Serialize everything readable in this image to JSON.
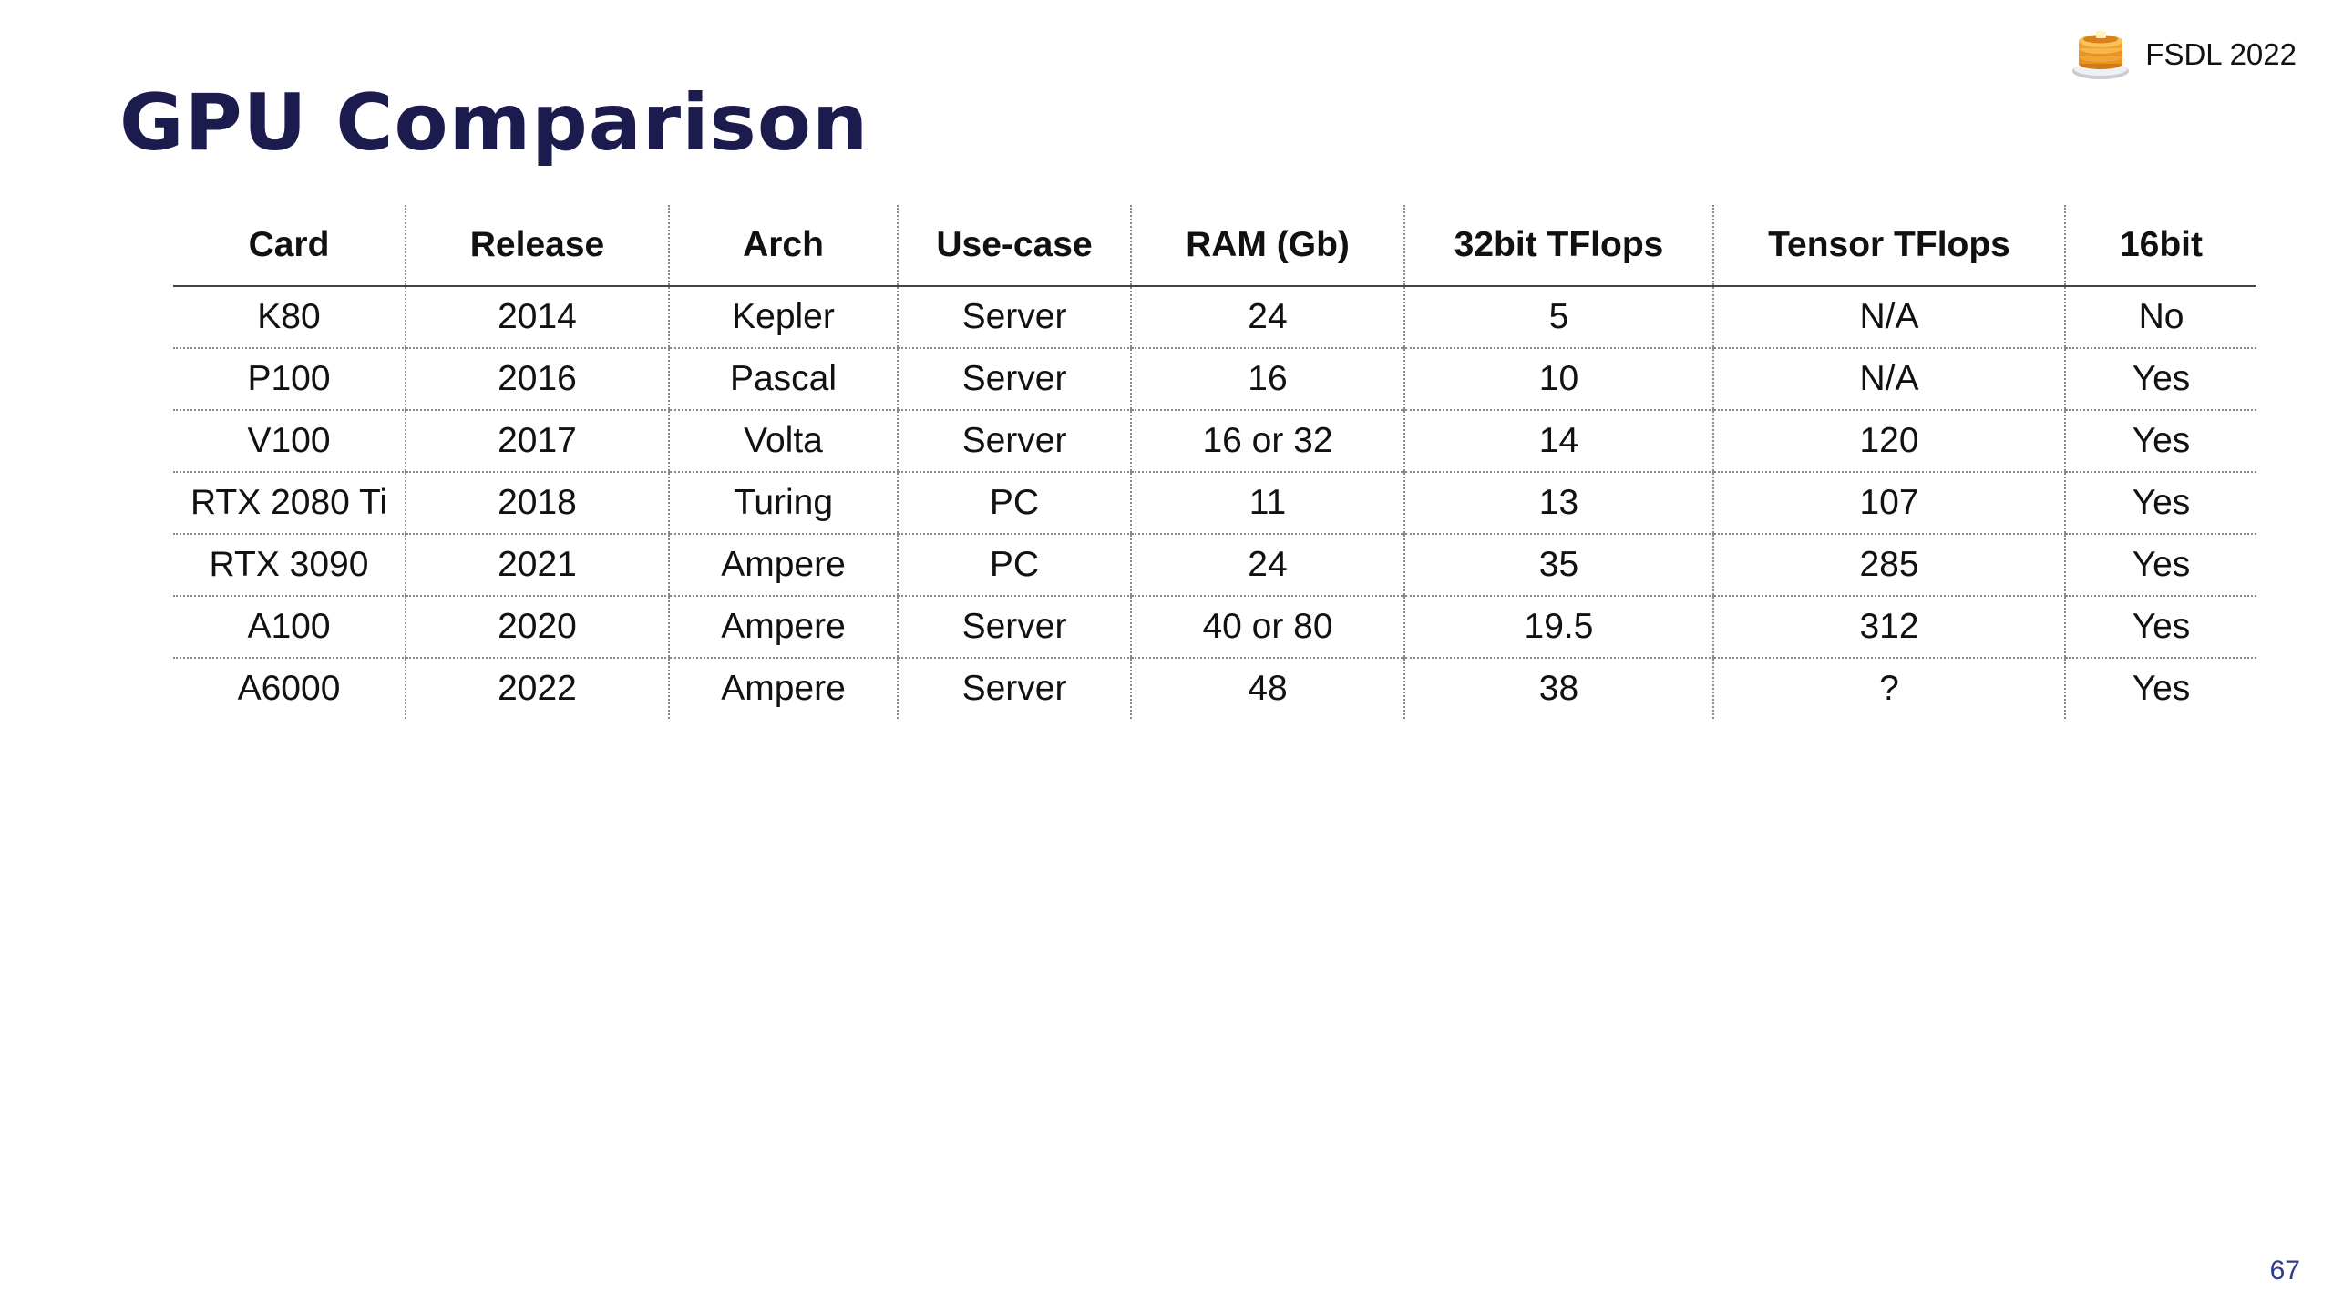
{
  "slide": {
    "title": "GPU Comparison",
    "brand": "FSDL 2022",
    "brand_icon": "pancake-stack-icon",
    "page_number": "67",
    "title_color": "#1c1b4d",
    "page_number_color": "#2e3a8c"
  },
  "table": {
    "headers": [
      "Card",
      "Release",
      "Arch",
      "Use-case",
      "RAM (Gb)",
      "32bit TFlops",
      "Tensor TFlops",
      "16bit"
    ],
    "rows": [
      [
        "K80",
        "2014",
        "Kepler",
        "Server",
        "24",
        "5",
        "N/A",
        "No"
      ],
      [
        "P100",
        "2016",
        "Pascal",
        "Server",
        "16",
        "10",
        "N/A",
        "Yes"
      ],
      [
        "V100",
        "2017",
        "Volta",
        "Server",
        "16 or 32",
        "14",
        "120",
        "Yes"
      ],
      [
        "RTX 2080 Ti",
        "2018",
        "Turing",
        "PC",
        "11",
        "13",
        "107",
        "Yes"
      ],
      [
        "RTX 3090",
        "2021",
        "Ampere",
        "PC",
        "24",
        "35",
        "285",
        "Yes"
      ],
      [
        "A100",
        "2020",
        "Ampere",
        "Server",
        "40 or 80",
        "19.5",
        "312",
        "Yes"
      ],
      [
        "A6000",
        "2022",
        "Ampere",
        "Server",
        "48",
        "38",
        "?",
        "Yes"
      ]
    ]
  }
}
